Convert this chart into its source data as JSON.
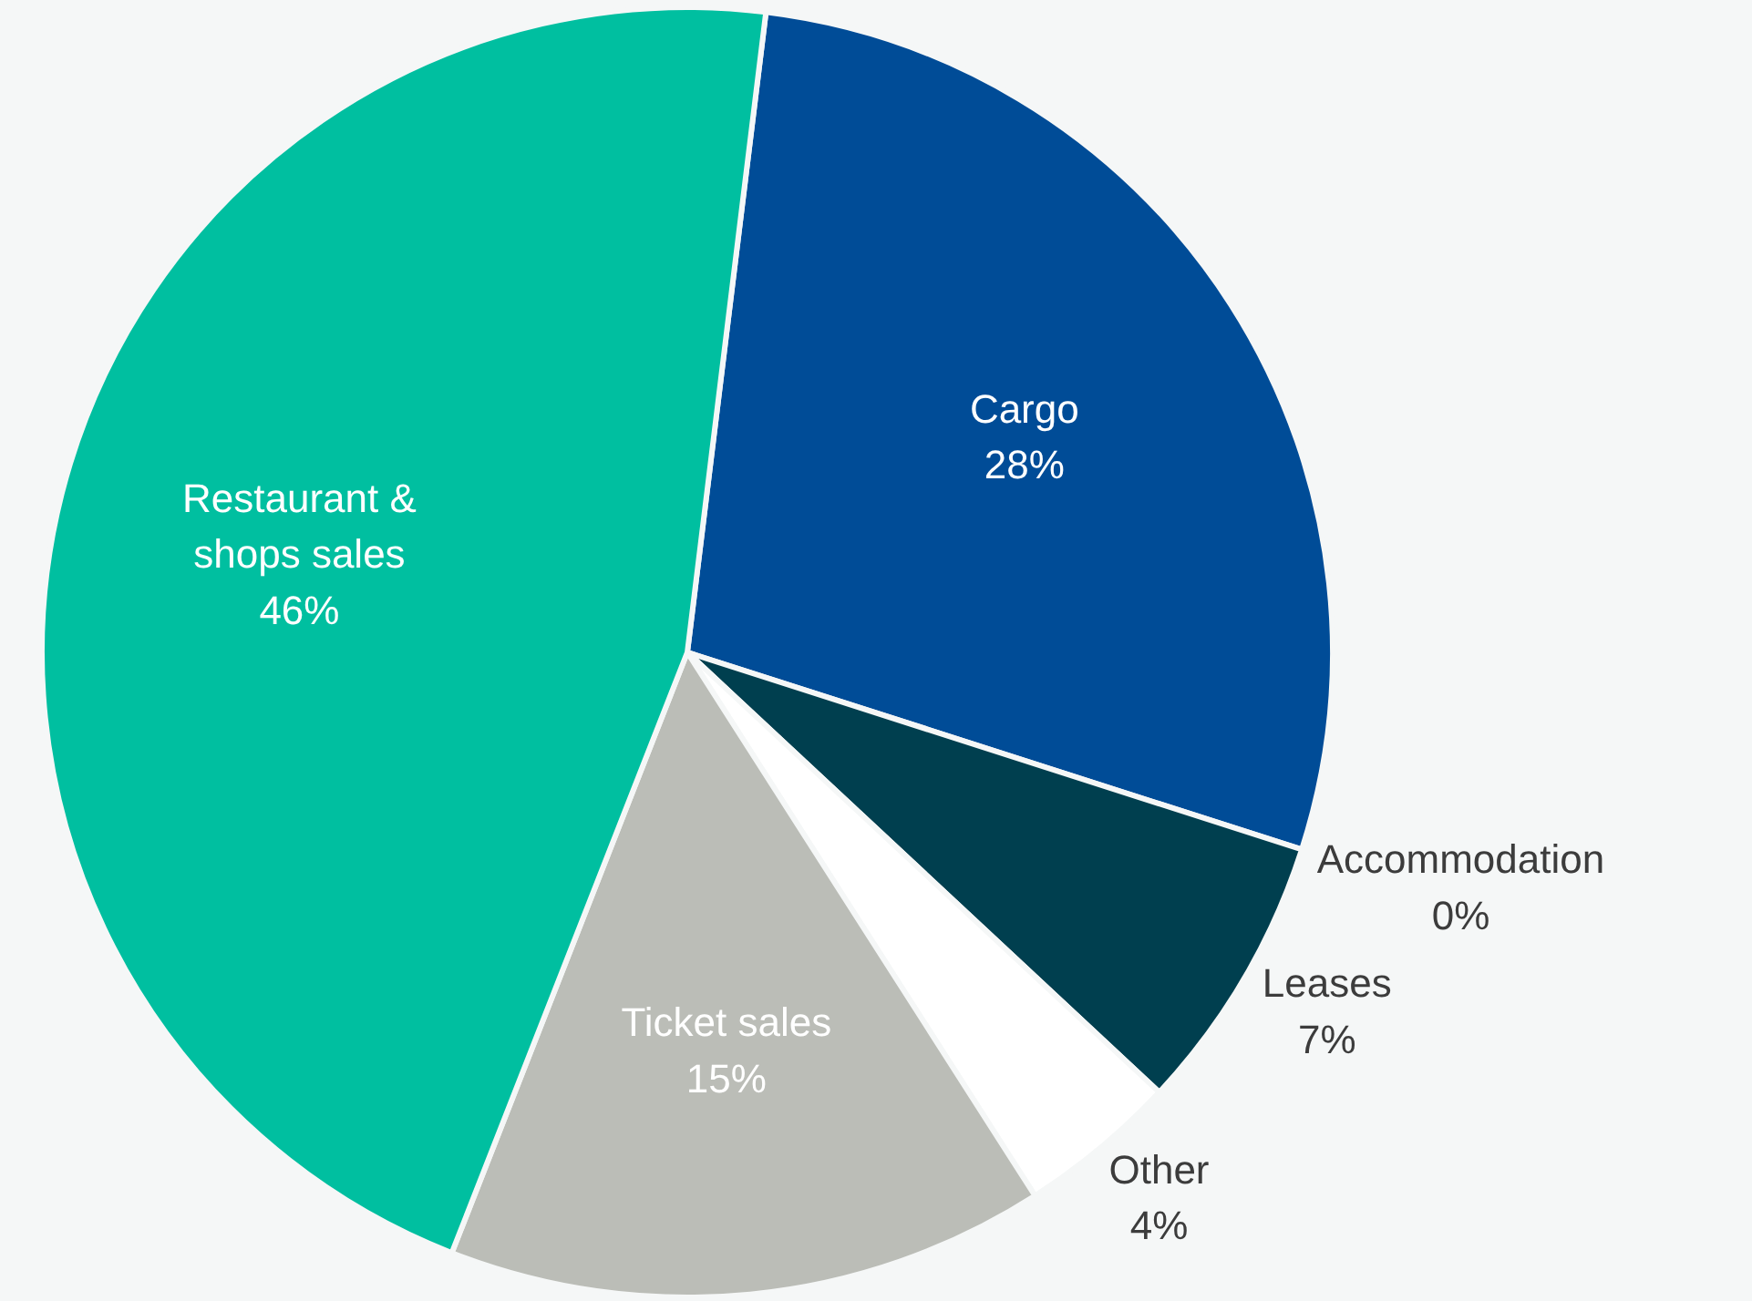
{
  "chart_data": {
    "type": "pie",
    "categories": [
      "Cargo",
      "Accommodation",
      "Leases",
      "Other",
      "Ticket sales",
      "Restaurant & shops sales"
    ],
    "values": [
      28,
      0,
      7,
      4,
      15,
      46
    ],
    "value_labels": [
      "28%",
      "0%",
      "7%",
      "4%",
      "15%",
      "46%"
    ],
    "colors": [
      "#004c97",
      null,
      "#003f4f",
      "#ffffff",
      "#bbbdb7",
      "#00bfa0"
    ]
  }
}
